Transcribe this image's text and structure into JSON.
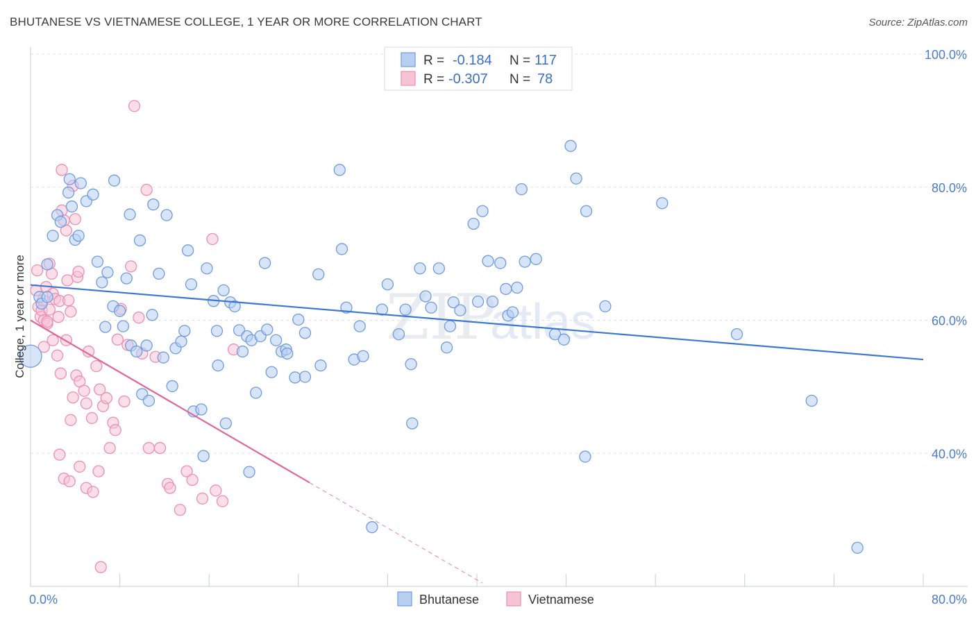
{
  "title": "BHUTANESE VS VIETNAMESE COLLEGE, 1 YEAR OR MORE CORRELATION CHART",
  "source": "Source: ZipAtlas.com",
  "colors": {
    "blue": "#6f9be0",
    "blue_fill": "#b8cff2",
    "pink": "#ee8fb0",
    "pink_fill": "#f6c3d5",
    "blue_line": "#3b78d0",
    "pink_line": "#e0679a",
    "grid": "#dfe3ea",
    "tick_text": "#4a7cc9"
  },
  "legend": {
    "rows": [
      {
        "r_label": "R =",
        "r_value": "-0.184",
        "n_label": "N =",
        "n_value": "117"
      },
      {
        "r_label": "R =",
        "r_value": "-0.307",
        "n_label": "N =",
        "n_value": "78"
      }
    ]
  },
  "watermark": {
    "zip": "ZIP",
    "atlas": "atlas"
  },
  "chart_data": {
    "type": "scatter",
    "title": "BHUTANESE VS VIETNAMESE COLLEGE, 1 YEAR OR MORE CORRELATION CHART",
    "ylabel": "College, 1 year or more",
    "xlabel": "",
    "xlim": [
      0,
      80
    ],
    "ylim": [
      20,
      100
    ],
    "x_tick_labels": [
      "0.0%",
      "80.0%"
    ],
    "y_tick_labels": [
      "40.0%",
      "60.0%",
      "80.0%",
      "100.0%"
    ],
    "y_tick_values": [
      40,
      60,
      80,
      100
    ],
    "legend_entries": [
      "Bhutanese",
      "Vietnamese"
    ],
    "series": [
      {
        "name": "Bhutanese",
        "r": -0.184,
        "n": 117,
        "trend": {
          "x": [
            0,
            80
          ],
          "y": [
            65.3,
            54.1
          ]
        },
        "points": [
          [
            0.8,
            63.5
          ],
          [
            1.0,
            62.5
          ],
          [
            1.5,
            68.4
          ],
          [
            1.5,
            63.5
          ],
          [
            2.0,
            72.7
          ],
          [
            2.4,
            75.8
          ],
          [
            2.7,
            74.8
          ],
          [
            3.4,
            79.2
          ],
          [
            3.5,
            81.2
          ],
          [
            3.7,
            77.1
          ],
          [
            4.0,
            72.1
          ],
          [
            4.3,
            72.7
          ],
          [
            4.5,
            80.6
          ],
          [
            5.0,
            77.9
          ],
          [
            5.6,
            78.9
          ],
          [
            6.0,
            68.8
          ],
          [
            6.4,
            65.7
          ],
          [
            6.7,
            59.0
          ],
          [
            6.9,
            67.2
          ],
          [
            7.4,
            62.1
          ],
          [
            7.5,
            81.0
          ],
          [
            8.0,
            61.4
          ],
          [
            8.3,
            59.1
          ],
          [
            8.6,
            66.3
          ],
          [
            8.9,
            75.9
          ],
          [
            9.0,
            56.2
          ],
          [
            9.5,
            55.3
          ],
          [
            9.8,
            72.0
          ],
          [
            10.0,
            48.9
          ],
          [
            10.4,
            56.2
          ],
          [
            10.6,
            47.9
          ],
          [
            10.9,
            60.8
          ],
          [
            11.0,
            77.4
          ],
          [
            11.5,
            67.0
          ],
          [
            11.9,
            54.4
          ],
          [
            12.2,
            75.8
          ],
          [
            12.7,
            50.1
          ],
          [
            13.0,
            55.8
          ],
          [
            13.5,
            56.8
          ],
          [
            13.8,
            58.4
          ],
          [
            14.1,
            70.5
          ],
          [
            14.4,
            65.4
          ],
          [
            14.6,
            46.3
          ],
          [
            15.3,
            46.6
          ],
          [
            15.5,
            39.6
          ],
          [
            15.8,
            67.8
          ],
          [
            16.4,
            62.9
          ],
          [
            16.7,
            58.4
          ],
          [
            16.8,
            53.2
          ],
          [
            17.3,
            64.5
          ],
          [
            17.5,
            44.5
          ],
          [
            17.9,
            62.7
          ],
          [
            18.3,
            62.1
          ],
          [
            18.7,
            58.5
          ],
          [
            19.0,
            55.3
          ],
          [
            19.4,
            57.6
          ],
          [
            19.6,
            37.2
          ],
          [
            19.8,
            57.0
          ],
          [
            20.2,
            49.1
          ],
          [
            20.6,
            57.6
          ],
          [
            21.0,
            68.6
          ],
          [
            21.2,
            58.6
          ],
          [
            21.6,
            52.2
          ],
          [
            22.0,
            57.0
          ],
          [
            22.5,
            55.3
          ],
          [
            22.9,
            55.6
          ],
          [
            23.0,
            55.0
          ],
          [
            23.7,
            51.4
          ],
          [
            24.0,
            60.1
          ],
          [
            24.6,
            58.1
          ],
          [
            24.6,
            51.5
          ],
          [
            25.8,
            66.9
          ],
          [
            26.0,
            53.2
          ],
          [
            27.7,
            82.6
          ],
          [
            27.9,
            70.7
          ],
          [
            28.3,
            61.9
          ],
          [
            29.0,
            54.1
          ],
          [
            29.5,
            59.1
          ],
          [
            29.8,
            54.6
          ],
          [
            30.6,
            28.9
          ],
          [
            31.5,
            61.6
          ],
          [
            32.0,
            65.4
          ],
          [
            33.0,
            57.9
          ],
          [
            33.6,
            61.6
          ],
          [
            34.1,
            53.4
          ],
          [
            34.2,
            44.5
          ],
          [
            34.9,
            67.8
          ],
          [
            35.4,
            63.6
          ],
          [
            35.9,
            61.9
          ],
          [
            36.6,
            67.8
          ],
          [
            37.3,
            55.9
          ],
          [
            37.6,
            59.1
          ],
          [
            37.9,
            62.7
          ],
          [
            38.5,
            61.5
          ],
          [
            39.7,
            74.5
          ],
          [
            40.1,
            62.8
          ],
          [
            40.5,
            76.4
          ],
          [
            41.0,
            68.9
          ],
          [
            41.4,
            62.8
          ],
          [
            42.1,
            68.6
          ],
          [
            42.6,
            64.7
          ],
          [
            42.8,
            60.7
          ],
          [
            43.2,
            61.2
          ],
          [
            43.6,
            64.9
          ],
          [
            44.0,
            79.7
          ],
          [
            44.3,
            68.8
          ],
          [
            45.3,
            69.2
          ],
          [
            47.0,
            57.9
          ],
          [
            47.8,
            57.1
          ],
          [
            48.4,
            86.2
          ],
          [
            48.9,
            81.3
          ],
          [
            49.8,
            76.4
          ],
          [
            49.7,
            39.5
          ],
          [
            51.5,
            62.1
          ],
          [
            56.6,
            77.6
          ],
          [
            63.3,
            57.9
          ],
          [
            70.0,
            47.9
          ],
          [
            74.1,
            25.8
          ],
          [
            0.0,
            54.6
          ]
        ]
      },
      {
        "name": "Vietnamese",
        "r": -0.307,
        "n": 78,
        "trend": {
          "x": [
            0,
            25
          ],
          "y": [
            60.0,
            35.6
          ]
        },
        "trend_dashed": {
          "x": [
            25,
            40.5
          ],
          "y": [
            35.6,
            20.5
          ]
        },
        "points": [
          [
            0.5,
            64.5
          ],
          [
            0.6,
            67.5
          ],
          [
            0.7,
            62.0
          ],
          [
            0.9,
            60.5
          ],
          [
            1.0,
            61.5
          ],
          [
            1.1,
            63.0
          ],
          [
            1.2,
            60.0
          ],
          [
            1.4,
            65.0
          ],
          [
            1.5,
            59.5
          ],
          [
            1.7,
            68.5
          ],
          [
            1.9,
            67.0
          ],
          [
            2.0,
            64.0
          ],
          [
            2.2,
            63.2
          ],
          [
            2.5,
            60.5
          ],
          [
            2.6,
            62.9
          ],
          [
            2.8,
            76.5
          ],
          [
            2.8,
            82.6
          ],
          [
            3.0,
            75.0
          ],
          [
            3.2,
            73.5
          ],
          [
            3.3,
            66.0
          ],
          [
            3.4,
            63.0
          ],
          [
            3.6,
            61.3
          ],
          [
            3.8,
            80.2
          ],
          [
            4.0,
            75.2
          ],
          [
            4.2,
            66.5
          ],
          [
            4.3,
            67.3
          ],
          [
            1.2,
            56.0
          ],
          [
            1.5,
            59.8
          ],
          [
            1.7,
            61.6
          ],
          [
            2.0,
            57.0
          ],
          [
            2.4,
            54.7
          ],
          [
            2.7,
            52.0
          ],
          [
            3.2,
            57.0
          ],
          [
            3.6,
            45.0
          ],
          [
            3.8,
            48.4
          ],
          [
            4.1,
            51.7
          ],
          [
            4.4,
            50.8
          ],
          [
            4.8,
            49.4
          ],
          [
            5.0,
            47.5
          ],
          [
            5.2,
            55.3
          ],
          [
            5.5,
            45.3
          ],
          [
            5.9,
            53.1
          ],
          [
            6.2,
            49.6
          ],
          [
            6.5,
            47.1
          ],
          [
            6.8,
            48.3
          ],
          [
            7.1,
            40.8
          ],
          [
            7.4,
            44.6
          ],
          [
            7.6,
            43.5
          ],
          [
            7.8,
            57.1
          ],
          [
            8.1,
            61.7
          ],
          [
            8.4,
            47.8
          ],
          [
            8.7,
            56.3
          ],
          [
            9.0,
            68.1
          ],
          [
            9.3,
            92.2
          ],
          [
            9.7,
            60.4
          ],
          [
            10.0,
            55.0
          ],
          [
            10.4,
            79.6
          ],
          [
            10.6,
            40.8
          ],
          [
            11.2,
            54.5
          ],
          [
            11.6,
            40.8
          ],
          [
            12.3,
            35.4
          ],
          [
            12.5,
            34.8
          ],
          [
            13.4,
            31.5
          ],
          [
            14.0,
            37.3
          ],
          [
            14.5,
            36.0
          ],
          [
            15.4,
            33.2
          ],
          [
            16.3,
            72.2
          ],
          [
            16.6,
            34.4
          ],
          [
            17.2,
            32.8
          ],
          [
            18.2,
            55.6
          ],
          [
            2.6,
            39.8
          ],
          [
            3.0,
            36.2
          ],
          [
            3.5,
            35.8
          ],
          [
            4.4,
            38.0
          ],
          [
            5.0,
            34.8
          ],
          [
            5.6,
            34.2
          ],
          [
            6.1,
            37.3
          ],
          [
            6.3,
            22.9
          ]
        ]
      }
    ]
  },
  "bottom_legend": {
    "items": [
      "Bhutanese",
      "Vietnamese"
    ]
  }
}
